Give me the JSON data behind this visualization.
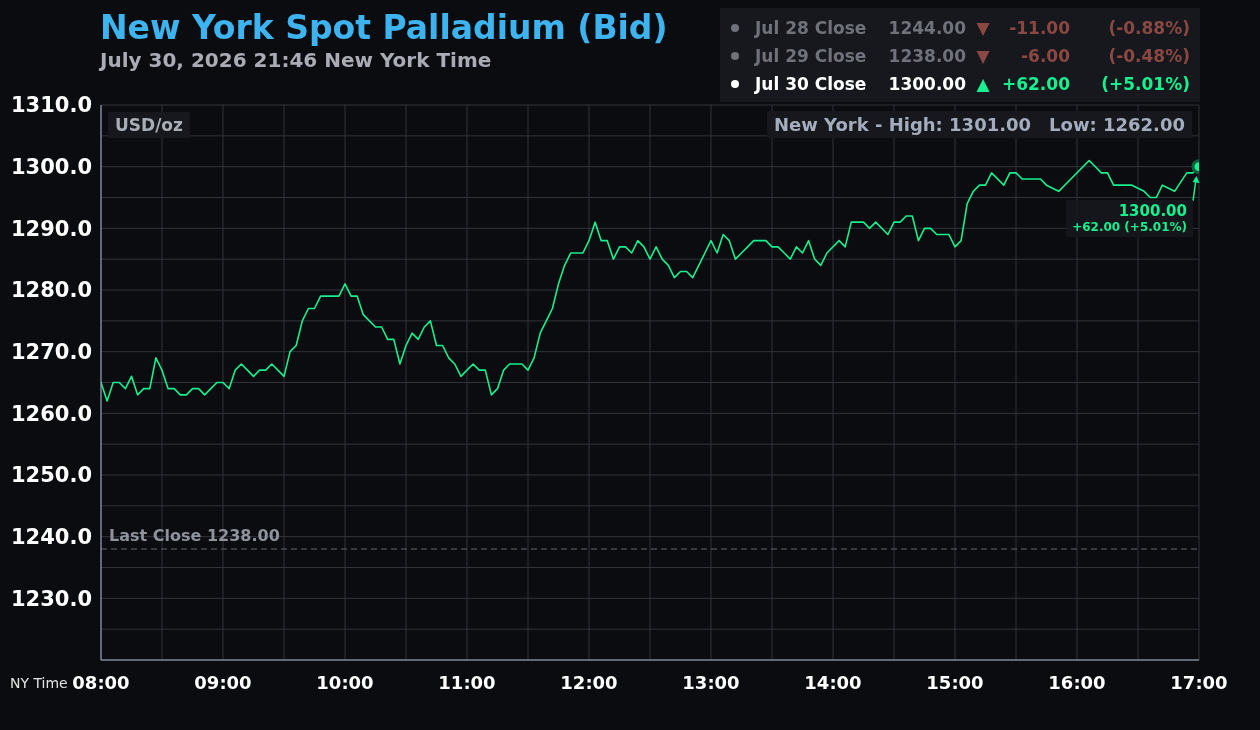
{
  "chart_data": {
    "type": "line",
    "title": "New York Spot Palladium (Bid)",
    "subtitle": "July 30, 2026 21:46 New York Time",
    "xlabel": "NY Time",
    "ylabel": "USD/oz",
    "annotations": [
      "Jul 28 Close",
      "1244.00",
      "▼",
      "-11.00",
      "(-0.88%)",
      "Jul 29 Close",
      "1238.00",
      "▼",
      "-6.00",
      "(-0.48%)",
      "Jul 30 Close",
      "1300.00",
      "▲",
      "+62.00",
      "(+5.01%)",
      "New York - High: 1301.00",
      "Low: 1262.00",
      {
        "text": "1300.00",
        "x": 17,
        "y": 1300
      },
      "+62.00 (+5.01%)"
    ],
    "series": [
      {
        "type": "line",
        "color": "#17f08e",
        "x": [
          8,
          8.05,
          8.1,
          8.15,
          8.2,
          8.25,
          8.3,
          8.35,
          8.4,
          8.45,
          8.5,
          8.55,
          8.6,
          8.65,
          8.7,
          8.75,
          8.8,
          8.85,
          8.9,
          8.95,
          9,
          9.05,
          9.1,
          9.15,
          9.2,
          9.25,
          9.3,
          9.35,
          9.4,
          9.45,
          9.5,
          9.55,
          9.6,
          9.65,
          9.7,
          9.75,
          9.8,
          9.95,
          10,
          10.05,
          10.1,
          10.15,
          10.2,
          10.25,
          10.3,
          10.35,
          10.4,
          10.45,
          10.5,
          10.55,
          10.6,
          10.65,
          10.7,
          10.75,
          10.8,
          10.85,
          10.9,
          10.95,
          11,
          11.05,
          11.1,
          11.15,
          11.2,
          11.25,
          11.3,
          11.35,
          11.45,
          11.5,
          11.55,
          11.6,
          11.65,
          11.7,
          11.75,
          11.8,
          11.85,
          11.95,
          12,
          12.05,
          12.1,
          12.15,
          12.2,
          12.25,
          12.3,
          12.35,
          12.4,
          12.45,
          12.5,
          12.55,
          12.6,
          12.65,
          12.7,
          12.75,
          12.8,
          12.85,
          12.9,
          12.95,
          13,
          13.05,
          13.1,
          13.15,
          13.2,
          13.25,
          13.3,
          13.35,
          13.45,
          13.5,
          13.55,
          13.6,
          13.65,
          13.7,
          13.75,
          13.8,
          13.85,
          13.9,
          13.95,
          14.05,
          14.1,
          14.15,
          14.25,
          14.3,
          14.35,
          14.45,
          14.5,
          14.55,
          14.6,
          14.65,
          14.7,
          14.75,
          14.8,
          14.85,
          14.95,
          15,
          15.05,
          15.1,
          15.15,
          15.2,
          15.25,
          15.3,
          15.4,
          15.45,
          15.5,
          15.55,
          15.7,
          15.75,
          15.85,
          15.95,
          16.05,
          16.1,
          16.2,
          16.25,
          16.3,
          16.45,
          16.55,
          16.6,
          16.65,
          16.7,
          16.8,
          16.9,
          16.95,
          17
        ],
        "values": [
          1265,
          1262,
          1265,
          1265,
          1264,
          1266,
          1263,
          1264,
          1264,
          1269,
          1267,
          1264,
          1264,
          1263,
          1263,
          1264,
          1264,
          1263,
          1264,
          1265,
          1265,
          1264,
          1267,
          1268,
          1267,
          1266,
          1267,
          1267,
          1268,
          1267,
          1266,
          1270,
          1271,
          1275,
          1277,
          1277,
          1279,
          1279,
          1281,
          1279,
          1279,
          1276,
          1275,
          1274,
          1274,
          1272,
          1272,
          1268,
          1271,
          1273,
          1272,
          1274,
          1275,
          1271,
          1271,
          1269,
          1268,
          1266,
          1267,
          1268,
          1267,
          1267,
          1263,
          1264,
          1267,
          1268,
          1268,
          1267,
          1269,
          1273,
          1275,
          1277,
          1281,
          1284,
          1286,
          1286,
          1288,
          1291,
          1288,
          1288,
          1285,
          1287,
          1287,
          1286,
          1288,
          1287,
          1285,
          1287,
          1285,
          1284,
          1282,
          1283,
          1283,
          1282,
          1284,
          1286,
          1288,
          1286,
          1289,
          1288,
          1285,
          1286,
          1287,
          1288,
          1288,
          1287,
          1287,
          1286,
          1285,
          1287,
          1286,
          1288,
          1285,
          1284,
          1286,
          1288,
          1287,
          1291,
          1291,
          1290,
          1291,
          1289,
          1291,
          1291,
          1292,
          1292,
          1288,
          1290,
          1290,
          1289,
          1289,
          1287,
          1288,
          1294,
          1296,
          1297,
          1297,
          1299,
          1297,
          1299,
          1299,
          1298,
          1298,
          1297,
          1296,
          1298,
          1300,
          1301,
          1299,
          1299,
          1297,
          1297,
          1296,
          1295,
          1295,
          1297,
          1296,
          1299,
          1299,
          1300
        ]
      },
      {
        "type": "scatter",
        "color": "#17f08e",
        "marker": "circle",
        "x": [
          17
        ],
        "values": [
          1300
        ]
      }
    ],
    "xlim": [
      8,
      17
    ],
    "ylim": [
      1220,
      1310
    ],
    "xticks": [
      {
        "value": 8,
        "label": "08:00"
      },
      {
        "value": 8.5,
        "label": null
      },
      {
        "value": 9,
        "label": "09:00"
      },
      {
        "value": 9.5,
        "label": null
      },
      {
        "value": 10,
        "label": "10:00"
      },
      {
        "value": 10.5,
        "label": null
      },
      {
        "value": 11,
        "label": "11:00"
      },
      {
        "value": 11.5,
        "label": null
      },
      {
        "value": 12,
        "label": "12:00"
      },
      {
        "value": 12.5,
        "label": null
      },
      {
        "value": 13,
        "label": "13:00"
      },
      {
        "value": 13.5,
        "label": null
      },
      {
        "value": 14,
        "label": "14:00"
      },
      {
        "value": 14.5,
        "label": null
      },
      {
        "value": 15,
        "label": "15:00"
      },
      {
        "value": 15.5,
        "label": null
      },
      {
        "value": 16,
        "label": "16:00"
      },
      {
        "value": 16.5,
        "label": null
      },
      {
        "value": 17,
        "label": "17:00"
      }
    ],
    "yticks": [
      {
        "value": 1225,
        "label": null
      },
      {
        "value": 1230,
        "label": "1230.0"
      },
      {
        "value": 1235,
        "label": null
      },
      {
        "value": 1240,
        "label": "1240.0"
      },
      {
        "value": 1245,
        "label": null
      },
      {
        "value": 1250,
        "label": "1250.0"
      },
      {
        "value": 1255,
        "label": null
      },
      {
        "value": 1260,
        "label": "1260.0"
      },
      {
        "value": 1265,
        "label": null
      },
      {
        "value": 1270,
        "label": "1270.0"
      },
      {
        "value": 1275,
        "label": null
      },
      {
        "value": 1280,
        "label": "1280.0"
      },
      {
        "value": 1285,
        "label": null
      },
      {
        "value": 1290,
        "label": "1290.0"
      },
      {
        "value": 1295,
        "label": null
      },
      {
        "value": 1300,
        "label": "1300.0"
      },
      {
        "value": 1305,
        "label": null
      },
      {
        "value": 1310,
        "label": "1310.0"
      }
    ],
    "grid": true,
    "line_style": "solid",
    "ref_lines": [
      {
        "axis": "y",
        "value": 1238,
        "label": "Last Close 1238.00",
        "color": "#60646c",
        "line_style": "dashed"
      }
    ]
  }
}
